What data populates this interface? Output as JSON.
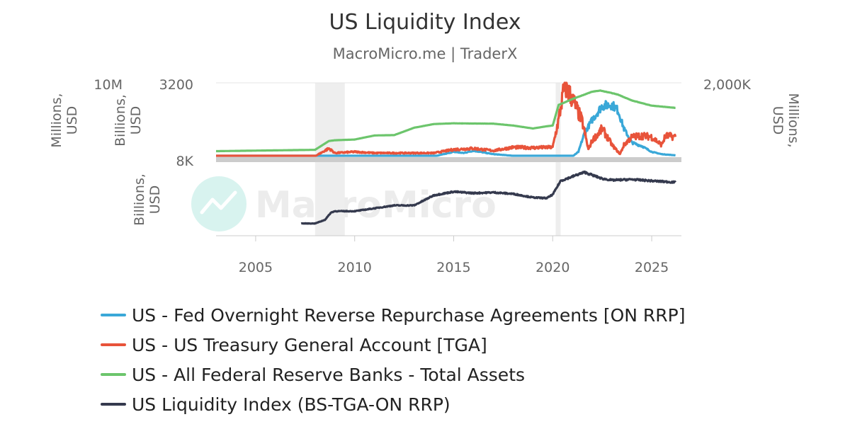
{
  "title": "US Liquidity Index",
  "subtitle": "MacroMicro.me | TraderX",
  "watermark": "MacroMicro",
  "colors": {
    "onrrp": "#3aa8d8",
    "tga": "#e8533a",
    "assets": "#6cc56c",
    "liquidity": "#353a4e",
    "recession": "#eeeeee",
    "separator": "#cccccc",
    "axis_text": "#666666"
  },
  "chart_data": {
    "type": "line",
    "x_axis": {
      "ticks": [
        "2005",
        "2010",
        "2015",
        "2020",
        "2025"
      ],
      "range": [
        2003,
        2026.5
      ]
    },
    "recession_bands": [
      [
        2008.0,
        2009.5
      ],
      [
        2020.15,
        2020.4
      ]
    ],
    "axes": {
      "top_left_outer": {
        "label": "Millions, USD",
        "ticks": [
          "10M"
        ]
      },
      "top_left_inner": {
        "label": "Billions, USD",
        "ticks": [
          "3200",
          "8K"
        ]
      },
      "top_right": {
        "label": "Millions, USD",
        "ticks": [
          "2,000K"
        ]
      },
      "bottom_left": {
        "label": "Billions, USD"
      }
    },
    "series": [
      {
        "name": "US - Fed Overnight Reverse Repurchase Agreements [ON RRP]",
        "color": "#3aa8d8",
        "unit": "Billions USD",
        "x": [
          2003.0,
          2014.0,
          2014.5,
          2015.0,
          2015.5,
          2016.0,
          2017.0,
          2018.0,
          2019.0,
          2020.0,
          2021.0,
          2021.3,
          2021.6,
          2022.0,
          2022.5,
          2023.0,
          2023.3,
          2023.6,
          2024.0,
          2024.5,
          2025.0,
          2025.5,
          2026.2
        ],
        "values": [
          0,
          0,
          100,
          200,
          150,
          250,
          100,
          30,
          10,
          0,
          0,
          200,
          1000,
          1600,
          2200,
          2250,
          2000,
          1200,
          600,
          450,
          200,
          100,
          50
        ],
        "ylim": [
          0,
          3200
        ]
      },
      {
        "name": "US - US Treasury General Account [TGA]",
        "color": "#e8533a",
        "unit": "Billions USD",
        "x": [
          2003.0,
          2006.0,
          2008.0,
          2008.7,
          2009.0,
          2010.0,
          2011.0,
          2012.0,
          2013.0,
          2014.0,
          2015.0,
          2016.0,
          2017.0,
          2018.0,
          2019.0,
          2020.0,
          2020.3,
          2020.6,
          2021.0,
          2021.5,
          2021.8,
          2022.0,
          2022.5,
          2023.0,
          2023.4,
          2023.6,
          2024.0,
          2024.5,
          2025.0,
          2025.5,
          2025.7,
          2026.2
        ],
        "values": [
          5,
          5,
          10,
          350,
          150,
          200,
          150,
          150,
          150,
          150,
          300,
          350,
          250,
          400,
          380,
          400,
          1600,
          3100,
          2500,
          1500,
          300,
          700,
          1200,
          500,
          100,
          500,
          850,
          900,
          850,
          500,
          900,
          850
        ],
        "ylim": [
          0,
          3200
        ]
      },
      {
        "name": "US - All Federal Reserve Banks - Total Assets",
        "color": "#6cc56c",
        "unit": "Millions USD",
        "x": [
          2003.0,
          2008.0,
          2008.7,
          2009.0,
          2010.0,
          2011.0,
          2012.0,
          2013.0,
          2014.0,
          2015.0,
          2017.0,
          2018.0,
          2019.0,
          2019.7,
          2020.0,
          2020.3,
          2021.0,
          2022.0,
          2022.4,
          2023.0,
          2023.3,
          2024.0,
          2025.0,
          2026.2
        ],
        "values": [
          720000,
          900000,
          2100000,
          2200000,
          2300000,
          2850000,
          2900000,
          3900000,
          4400000,
          4500000,
          4450000,
          4200000,
          3800000,
          4100000,
          4200000,
          7000000,
          7800000,
          8800000,
          8950000,
          8600000,
          8400000,
          7600000,
          6900000,
          6600000
        ],
        "ylim": [
          0,
          10000000
        ]
      },
      {
        "name": "US Liquidity Index (BS-TGA-ON RRP)",
        "color": "#353a4e",
        "unit": "Billions USD",
        "x": [
          2007.3,
          2008.0,
          2008.5,
          2008.8,
          2009.0,
          2010.0,
          2011.0,
          2012.0,
          2013.0,
          2014.0,
          2015.0,
          2016.0,
          2017.0,
          2018.0,
          2019.0,
          2019.7,
          2020.0,
          2020.4,
          2021.0,
          2021.6,
          2022.0,
          2022.5,
          2023.0,
          2024.0,
          2025.0,
          2026.2
        ],
        "values": [
          850,
          850,
          1100,
          1600,
          1700,
          1700,
          1900,
          2100,
          2100,
          2800,
          3050,
          2950,
          3000,
          2900,
          2650,
          2600,
          2850,
          3800,
          4100,
          4400,
          4200,
          3950,
          3850,
          3900,
          3800,
          3700
        ],
        "ylim": [
          0,
          5000
        ]
      }
    ]
  }
}
